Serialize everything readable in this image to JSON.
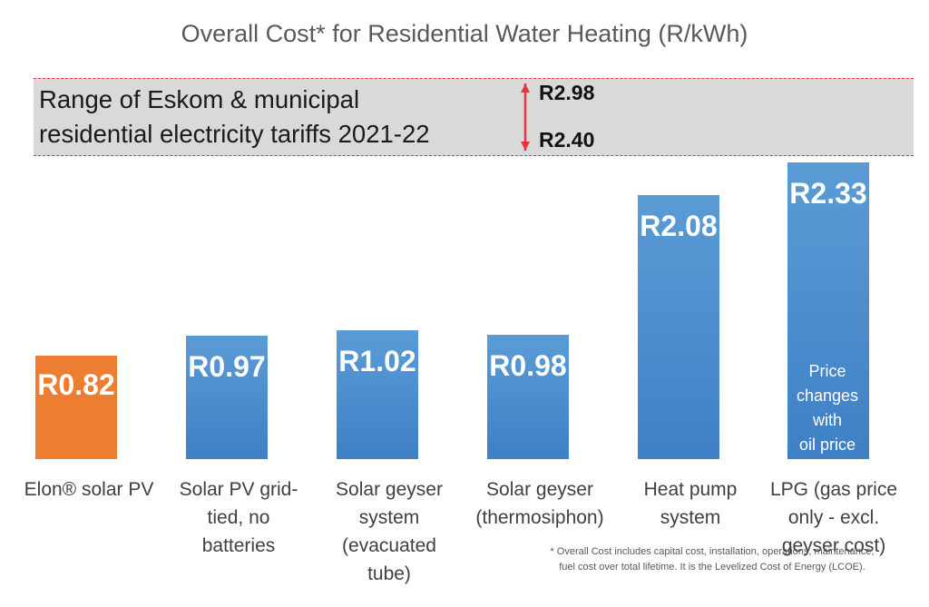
{
  "chart_data": {
    "type": "bar",
    "title": "Overall Cost* for Residential Water Heating (R/kWh)",
    "categories": [
      "Elon® solar PV",
      "Solar PV grid-\ntied, no\nbatteries",
      "Solar geyser\nsystem\n(evacuated\ntube)",
      "Solar geyser\n(thermosiphon)",
      "Heat pump\nsystem",
      "LPG (gas price\nonly - excl.\ngeyser cost)"
    ],
    "values": [
      0.82,
      0.97,
      1.02,
      0.98,
      2.08,
      2.33
    ],
    "value_labels": [
      "R0.82",
      "R0.97",
      "R1.02",
      "R0.98",
      "R2.08",
      "R2.33"
    ],
    "colors": [
      "#ed7d31",
      "#5b9bd5",
      "#5b9bd5",
      "#5b9bd5",
      "#5b9bd5",
      "#5b9bd5"
    ],
    "band": {
      "label": "Range of Eskom & municipal\nresidential electricity tariffs 2021-22",
      "low": 2.4,
      "high": 2.98,
      "low_label": "R2.40",
      "high_label": "R2.98",
      "color": "#d9d9d9",
      "line_color": "#e8343a"
    },
    "annotation": "Price\nchanges\nwith\noil price",
    "footnote": "* Overall Cost includes capital cost, installation, operations, maintenance,\nfuel cost over total lifetime.  It is the Levelized Cost of Energy (LCOE)."
  }
}
